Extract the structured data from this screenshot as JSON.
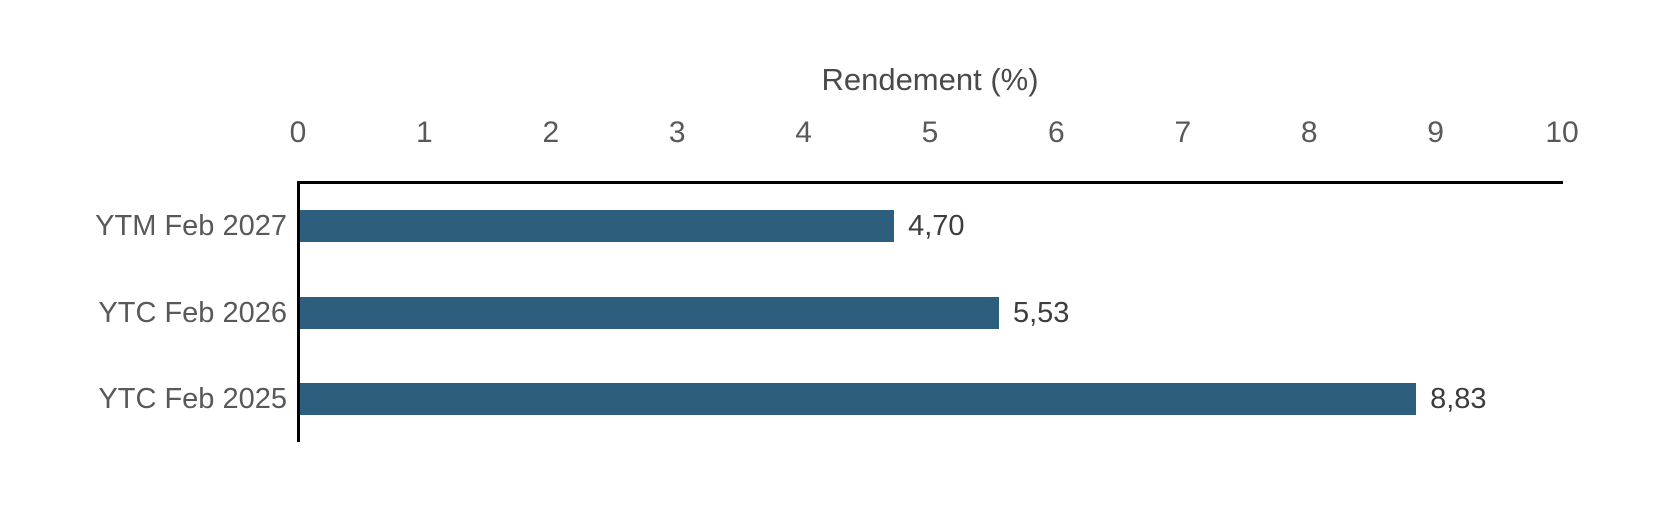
{
  "chart_data": {
    "type": "bar",
    "orientation": "horizontal",
    "title": "Rendement (%)",
    "categories": [
      "YTM Feb 2027",
      "YTC Feb 2026",
      "YTC Feb 2025"
    ],
    "values": [
      4.7,
      5.53,
      8.83
    ],
    "value_labels": [
      "4,70",
      "5,53",
      "8,83"
    ],
    "x_ticks": [
      "0",
      "1",
      "2",
      "3",
      "4",
      "5",
      "6",
      "7",
      "8",
      "9",
      "10"
    ],
    "xlim": [
      0,
      10
    ],
    "xlabel": "Rendement (%)",
    "ylabel": "",
    "axis_position": "top",
    "grid": false,
    "legend": "none",
    "colors": {
      "bar": "#2E5E7E",
      "axis_line": "#000000",
      "tick_label": "#595959",
      "category_label": "#595959",
      "value_label": "#3d3d3d",
      "title": "#4a4a4a",
      "background": "#ffffff"
    }
  }
}
